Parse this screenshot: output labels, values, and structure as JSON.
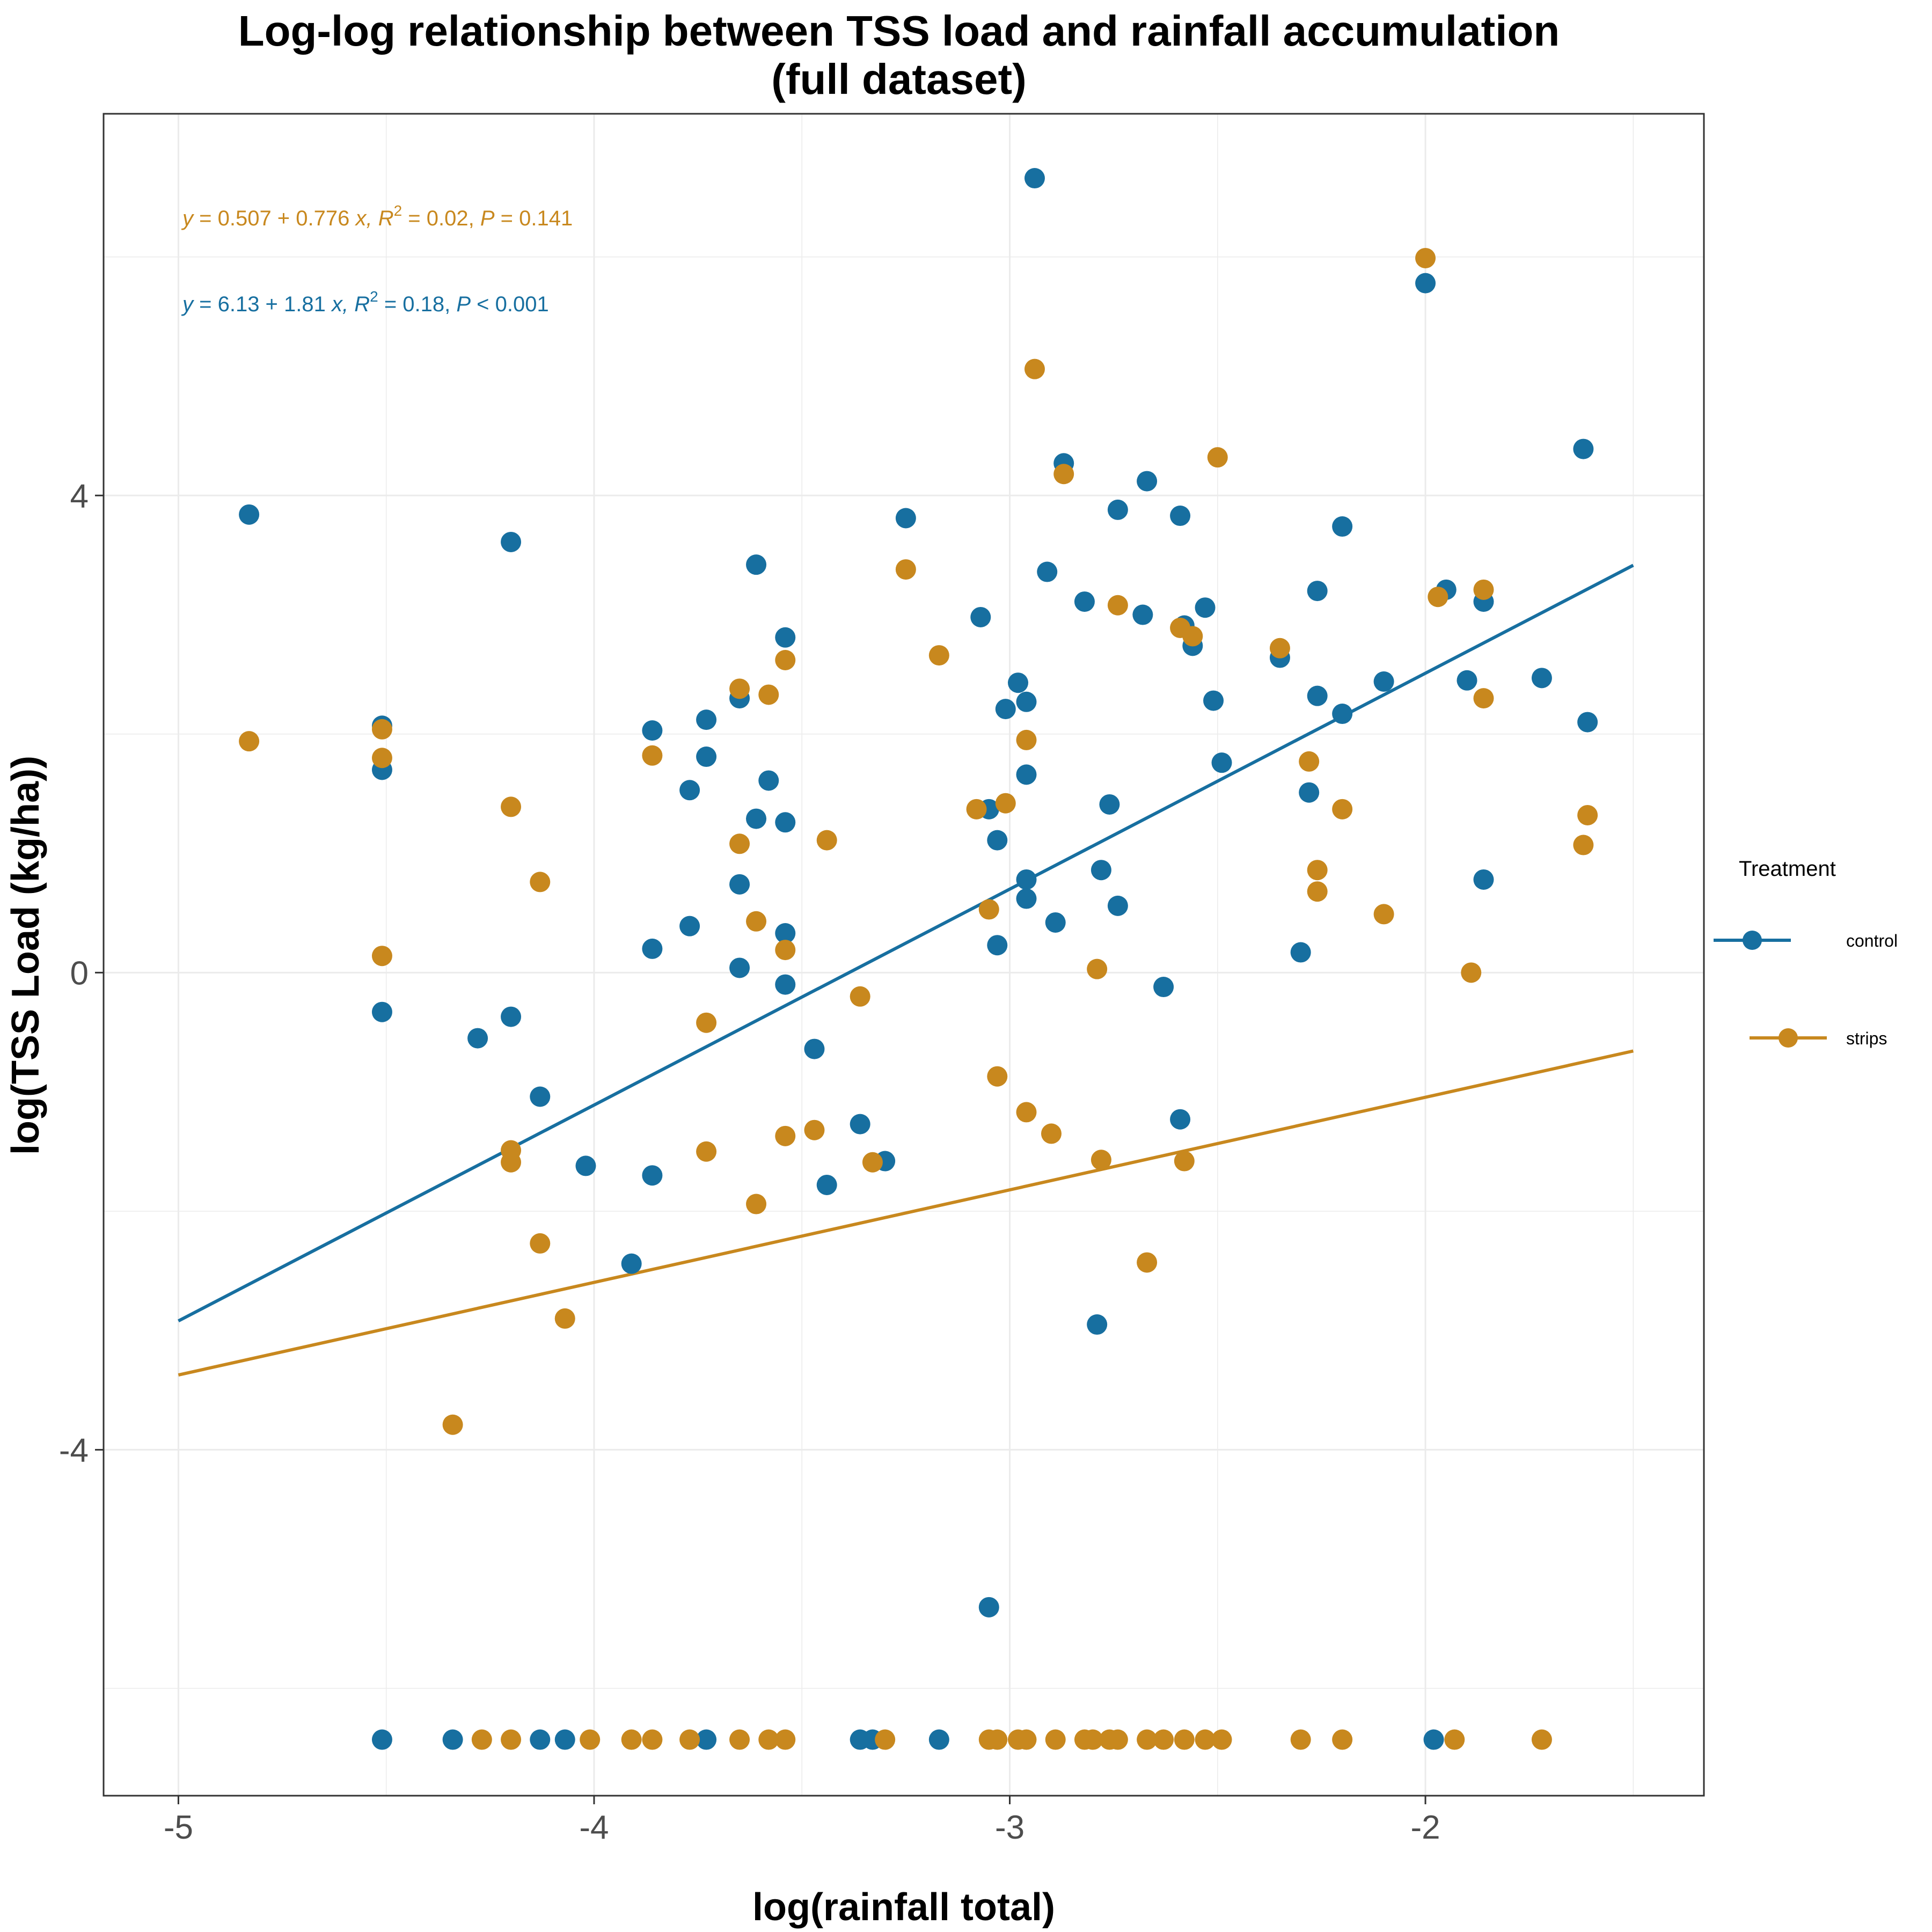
{
  "colors": {
    "control": "#176FA0",
    "strips": "#C8881E",
    "grid": "#EBEBEB",
    "axis_text": "#4D4D4D"
  },
  "chart_data": {
    "type": "scatter",
    "title": [
      "Log-log relationship between TSS load and rainfall accumulation",
      "(full dataset)"
    ],
    "xlabel": "log(rainfall total)",
    "ylabel": "log(TSS Load (kg/ha))",
    "xlim": [
      -5.18,
      -1.33
    ],
    "ylim": [
      -6.9,
      7.2
    ],
    "x_ticks": [
      -5,
      -4,
      -3,
      -2
    ],
    "x_tick_labels": [
      "-5",
      "-4",
      "-3",
      "-2"
    ],
    "y_ticks": [
      -4,
      0,
      4
    ],
    "y_tick_labels": [
      "-4",
      "0",
      "4"
    ],
    "grid": true,
    "legend": {
      "title": "Treatment",
      "position": "right"
    },
    "annotations": [
      {
        "series": "strips",
        "y": "y",
        "eq_a": " = 0.507 + 0.776 ",
        "x": "x",
        "r2_label": ", R",
        "sup": "2",
        "r2": " = 0.02, ",
        "p": "P",
        "p_val": " = 0.141"
      },
      {
        "series": "control",
        "y": "y",
        "eq_a": " = 6.13 + 1.81 ",
        "x": "x",
        "r2_label": ", R",
        "sup": "2",
        "r2": " = 0.18, ",
        "p": "P",
        "p_val": " < 0.001"
      }
    ],
    "series": [
      {
        "name": "control",
        "color": "#176FA0",
        "fit": {
          "intercept": 6.13,
          "slope": 1.81,
          "x_range": [
            -5,
            -1.5
          ]
        },
        "points": [
          [
            -4.83,
            3.84
          ],
          [
            -4.51,
            2.07
          ],
          [
            -4.51,
            1.7
          ],
          [
            -4.51,
            -0.33
          ],
          [
            -4.2,
            3.61
          ],
          [
            -4.2,
            -0.37
          ],
          [
            -4.28,
            -0.55
          ],
          [
            -4.13,
            -1.04
          ],
          [
            -4.02,
            -1.62
          ],
          [
            -3.91,
            -2.44
          ],
          [
            -3.86,
            2.03
          ],
          [
            -3.86,
            0.2
          ],
          [
            -3.86,
            -1.7
          ],
          [
            -3.77,
            1.53
          ],
          [
            -3.77,
            0.39
          ],
          [
            -3.73,
            2.12
          ],
          [
            -3.73,
            1.81
          ],
          [
            -3.65,
            2.3
          ],
          [
            -3.65,
            0.74
          ],
          [
            -3.65,
            0.04
          ],
          [
            -3.61,
            3.42
          ],
          [
            -3.61,
            1.29
          ],
          [
            -3.58,
            1.61
          ],
          [
            -3.54,
            2.81
          ],
          [
            -3.54,
            1.26
          ],
          [
            -3.54,
            0.33
          ],
          [
            -3.54,
            -0.1
          ],
          [
            -3.47,
            -0.64
          ],
          [
            -3.44,
            -1.78
          ],
          [
            -3.36,
            -1.27
          ],
          [
            -3.3,
            -1.58
          ],
          [
            -3.25,
            3.81
          ],
          [
            -3.17,
            -6.43
          ],
          [
            -3.07,
            2.98
          ],
          [
            -3.05,
            1.37
          ],
          [
            -3.03,
            1.11
          ],
          [
            -3.03,
            0.23
          ],
          [
            -3.05,
            -5.32
          ],
          [
            -3.01,
            2.21
          ],
          [
            -2.98,
            2.43
          ],
          [
            -2.96,
            2.27
          ],
          [
            -2.96,
            1.66
          ],
          [
            -2.96,
            0.78
          ],
          [
            -2.96,
            0.62
          ],
          [
            -2.94,
            6.66
          ],
          [
            -2.91,
            3.36
          ],
          [
            -2.89,
            0.42
          ],
          [
            -2.87,
            4.27
          ],
          [
            -2.82,
            3.11
          ],
          [
            -2.79,
            -2.95
          ],
          [
            -2.78,
            0.86
          ],
          [
            -2.76,
            1.41
          ],
          [
            -2.74,
            3.88
          ],
          [
            -2.74,
            0.56
          ],
          [
            -2.67,
            4.12
          ],
          [
            -2.68,
            3.0
          ],
          [
            -2.63,
            -0.12
          ],
          [
            -2.59,
            3.83
          ],
          [
            -2.58,
            2.91
          ],
          [
            -2.56,
            2.74
          ],
          [
            -2.53,
            3.06
          ],
          [
            -2.51,
            2.28
          ],
          [
            -2.49,
            1.76
          ],
          [
            -2.59,
            -1.23
          ],
          [
            -2.35,
            2.64
          ],
          [
            -2.3,
            0.17
          ],
          [
            -2.28,
            1.51
          ],
          [
            -2.26,
            3.2
          ],
          [
            -2.26,
            2.32
          ],
          [
            -2.2,
            3.74
          ],
          [
            -2.2,
            2.17
          ],
          [
            -2.1,
            2.44
          ],
          [
            -2.0,
            5.78
          ],
          [
            -1.95,
            3.21
          ],
          [
            -1.9,
            2.45
          ],
          [
            -1.86,
            3.11
          ],
          [
            -1.86,
            0.78
          ],
          [
            -1.72,
            2.47
          ],
          [
            -1.62,
            4.39
          ],
          [
            -1.61,
            2.1
          ],
          [
            -4.51,
            -6.43
          ],
          [
            -4.34,
            -6.43
          ],
          [
            -4.13,
            -6.43
          ],
          [
            -4.07,
            -6.43
          ],
          [
            -3.73,
            -6.43
          ],
          [
            -3.36,
            -6.43
          ],
          [
            -3.33,
            -6.43
          ],
          [
            -1.98,
            -6.43
          ]
        ]
      },
      {
        "name": "strips",
        "color": "#C8881E",
        "fit": {
          "intercept": 0.507,
          "slope": 0.776,
          "x_range": [
            -5,
            -1.5
          ]
        },
        "points": [
          [
            -4.83,
            1.94
          ],
          [
            -4.51,
            2.04
          ],
          [
            -4.51,
            1.8
          ],
          [
            -4.51,
            0.14
          ],
          [
            -4.34,
            -3.79
          ],
          [
            -4.2,
            1.39
          ],
          [
            -4.2,
            -1.49
          ],
          [
            -4.2,
            -1.59
          ],
          [
            -4.13,
            0.76
          ],
          [
            -4.13,
            -2.27
          ],
          [
            -4.07,
            -2.9
          ],
          [
            -3.86,
            1.82
          ],
          [
            -3.73,
            -0.42
          ],
          [
            -3.73,
            -1.5
          ],
          [
            -3.65,
            2.38
          ],
          [
            -3.65,
            1.08
          ],
          [
            -3.61,
            0.43
          ],
          [
            -3.61,
            -1.94
          ],
          [
            -3.58,
            2.33
          ],
          [
            -3.54,
            2.62
          ],
          [
            -3.54,
            0.19
          ],
          [
            -3.54,
            -1.37
          ],
          [
            -3.47,
            -1.32
          ],
          [
            -3.44,
            1.11
          ],
          [
            -3.36,
            -0.2
          ],
          [
            -3.33,
            -1.59
          ],
          [
            -3.25,
            3.38
          ],
          [
            -3.17,
            2.66
          ],
          [
            -3.08,
            1.37
          ],
          [
            -3.05,
            0.53
          ],
          [
            -3.03,
            -0.87
          ],
          [
            -3.01,
            1.42
          ],
          [
            -2.96,
            1.95
          ],
          [
            -2.96,
            -1.17
          ],
          [
            -2.94,
            5.06
          ],
          [
            -2.9,
            -1.35
          ],
          [
            -2.87,
            4.18
          ],
          [
            -2.79,
            0.03
          ],
          [
            -2.78,
            -1.57
          ],
          [
            -2.74,
            3.08
          ],
          [
            -2.67,
            -2.43
          ],
          [
            -2.59,
            2.89
          ],
          [
            -2.56,
            2.82
          ],
          [
            -2.58,
            -1.58
          ],
          [
            -2.5,
            4.32
          ],
          [
            -2.35,
            2.72
          ],
          [
            -2.28,
            1.77
          ],
          [
            -2.26,
            0.86
          ],
          [
            -2.26,
            0.68
          ],
          [
            -2.2,
            1.37
          ],
          [
            -2.1,
            0.49
          ],
          [
            -2.0,
            5.99
          ],
          [
            -1.97,
            3.15
          ],
          [
            -1.89,
            0.0
          ],
          [
            -1.86,
            3.21
          ],
          [
            -1.86,
            2.3
          ],
          [
            -1.62,
            1.07
          ],
          [
            -1.61,
            1.32
          ],
          [
            -4.27,
            -6.43
          ],
          [
            -4.2,
            -6.43
          ],
          [
            -4.01,
            -6.43
          ],
          [
            -3.91,
            -6.43
          ],
          [
            -3.86,
            -6.43
          ],
          [
            -3.77,
            -6.43
          ],
          [
            -3.65,
            -6.43
          ],
          [
            -3.58,
            -6.43
          ],
          [
            -3.54,
            -6.43
          ],
          [
            -3.3,
            -6.43
          ],
          [
            -3.05,
            -6.43
          ],
          [
            -3.03,
            -6.43
          ],
          [
            -2.98,
            -6.43
          ],
          [
            -2.96,
            -6.43
          ],
          [
            -2.89,
            -6.43
          ],
          [
            -2.82,
            -6.43
          ],
          [
            -2.8,
            -6.43
          ],
          [
            -2.76,
            -6.43
          ],
          [
            -2.74,
            -6.43
          ],
          [
            -2.67,
            -6.43
          ],
          [
            -2.63,
            -6.43
          ],
          [
            -2.58,
            -6.43
          ],
          [
            -2.53,
            -6.43
          ],
          [
            -2.49,
            -6.43
          ],
          [
            -2.3,
            -6.43
          ],
          [
            -2.2,
            -6.43
          ],
          [
            -1.93,
            -6.43
          ],
          [
            -1.72,
            -6.43
          ]
        ]
      }
    ]
  }
}
